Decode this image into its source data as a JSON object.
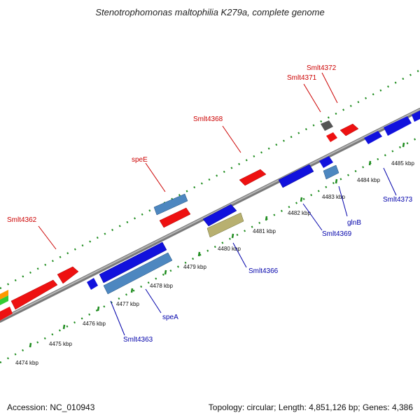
{
  "title": "Stenotrophomonas maltophilia K279a, complete genome",
  "footer": {
    "accession": "Accession: NC_010943",
    "summary": "Topology: circular; Length: 4,851,126 bp; Genes: 4,386"
  },
  "colors": {
    "backbone": "#9a9a9a",
    "ticks": "#1e8c1e",
    "forward_label": "#cc0000",
    "reverse_label": "#0000aa",
    "red_gene": "#ee1111",
    "blue_gene": "#1111dd",
    "steel_gene": "#4d87c0",
    "olive_gene": "#b8b070",
    "gray_gene": "#555555"
  },
  "ticks": [
    "4474 kbp",
    "4475 kbp",
    "4476 kbp",
    "4477 kbp",
    "4478 kbp",
    "4479 kbp",
    "4480 kbp",
    "4481 kbp",
    "4482 kbp",
    "4483 kbp",
    "4484 kbp",
    "4485 kbp"
  ],
  "labels": {
    "top": [
      "Smlt4362",
      "speE",
      "Smlt4368",
      "Smlt4371",
      "Smlt4372"
    ],
    "bottom": [
      "Smlt4363",
      "speA",
      "Smlt4366",
      "Smlt4369",
      "glnB",
      "Smlt4373"
    ]
  }
}
